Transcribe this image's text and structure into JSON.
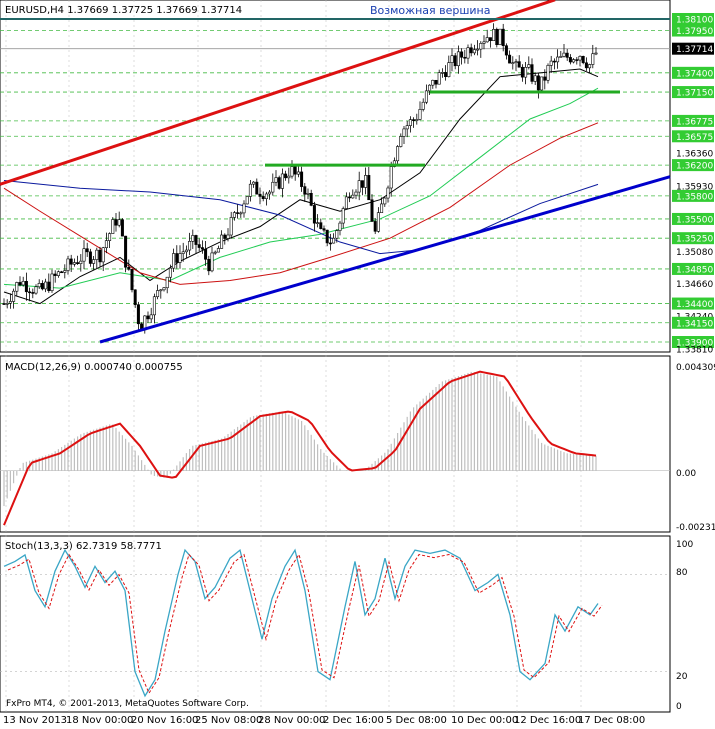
{
  "main": {
    "symbol_info": "EURUSD,H4  1.37669 1.37725 1.37669 1.37714",
    "annotation": "Возможная вершина",
    "current_price": "1.37714",
    "price_labels": [
      "1.38100",
      "1.37950",
      "1.37714",
      "1.37400",
      "1.37150",
      "1.36775",
      "1.36575",
      "1.36360",
      "1.36200",
      "1.35930",
      "1.35800",
      "1.35500",
      "1.35250",
      "1.35080",
      "1.34850",
      "1.34660",
      "1.34400",
      "1.34240",
      "1.34150",
      "1.33900",
      "1.33810"
    ],
    "highlighted_levels": [
      "1.38100",
      "1.37950",
      "1.37714",
      "1.37400",
      "1.37150",
      "1.36775",
      "1.36575",
      "1.36200",
      "1.35800",
      "1.35500",
      "1.35250",
      "1.34850",
      "1.34400",
      "1.34150",
      "1.33900"
    ],
    "colors": {
      "up_trend": "#0000cc",
      "resistance": "#dd1111",
      "horizontal": "#22aa22",
      "ma_fast": "#000000",
      "ma_mid": "#22cc55",
      "ma_slow": "#cc1111",
      "ma_long": "#0b1a9e"
    }
  },
  "macd": {
    "title": "MACD(12,26,9) 0.000740 0.000755",
    "labels": [
      "0.004309",
      "0.00",
      "-0.002317"
    ]
  },
  "stoch": {
    "title": "Stoch(13,3,3) 62.7319 58.7771",
    "labels": [
      "100",
      "80",
      "20",
      "0"
    ]
  },
  "copyright": "FxPro MT4, © 2001-2013, MetaQuotes Software Corp.",
  "date_labels": [
    "13 Nov 2013",
    "18 Nov 00:00",
    "20 Nov 16:00",
    "25 Nov 08:00",
    "28 Nov 00:00",
    "2 Dec 16:00",
    "5 Dec 08:00",
    "10 Dec 00:00",
    "12 Dec 16:00",
    "17 Dec 08:00"
  ]
}
